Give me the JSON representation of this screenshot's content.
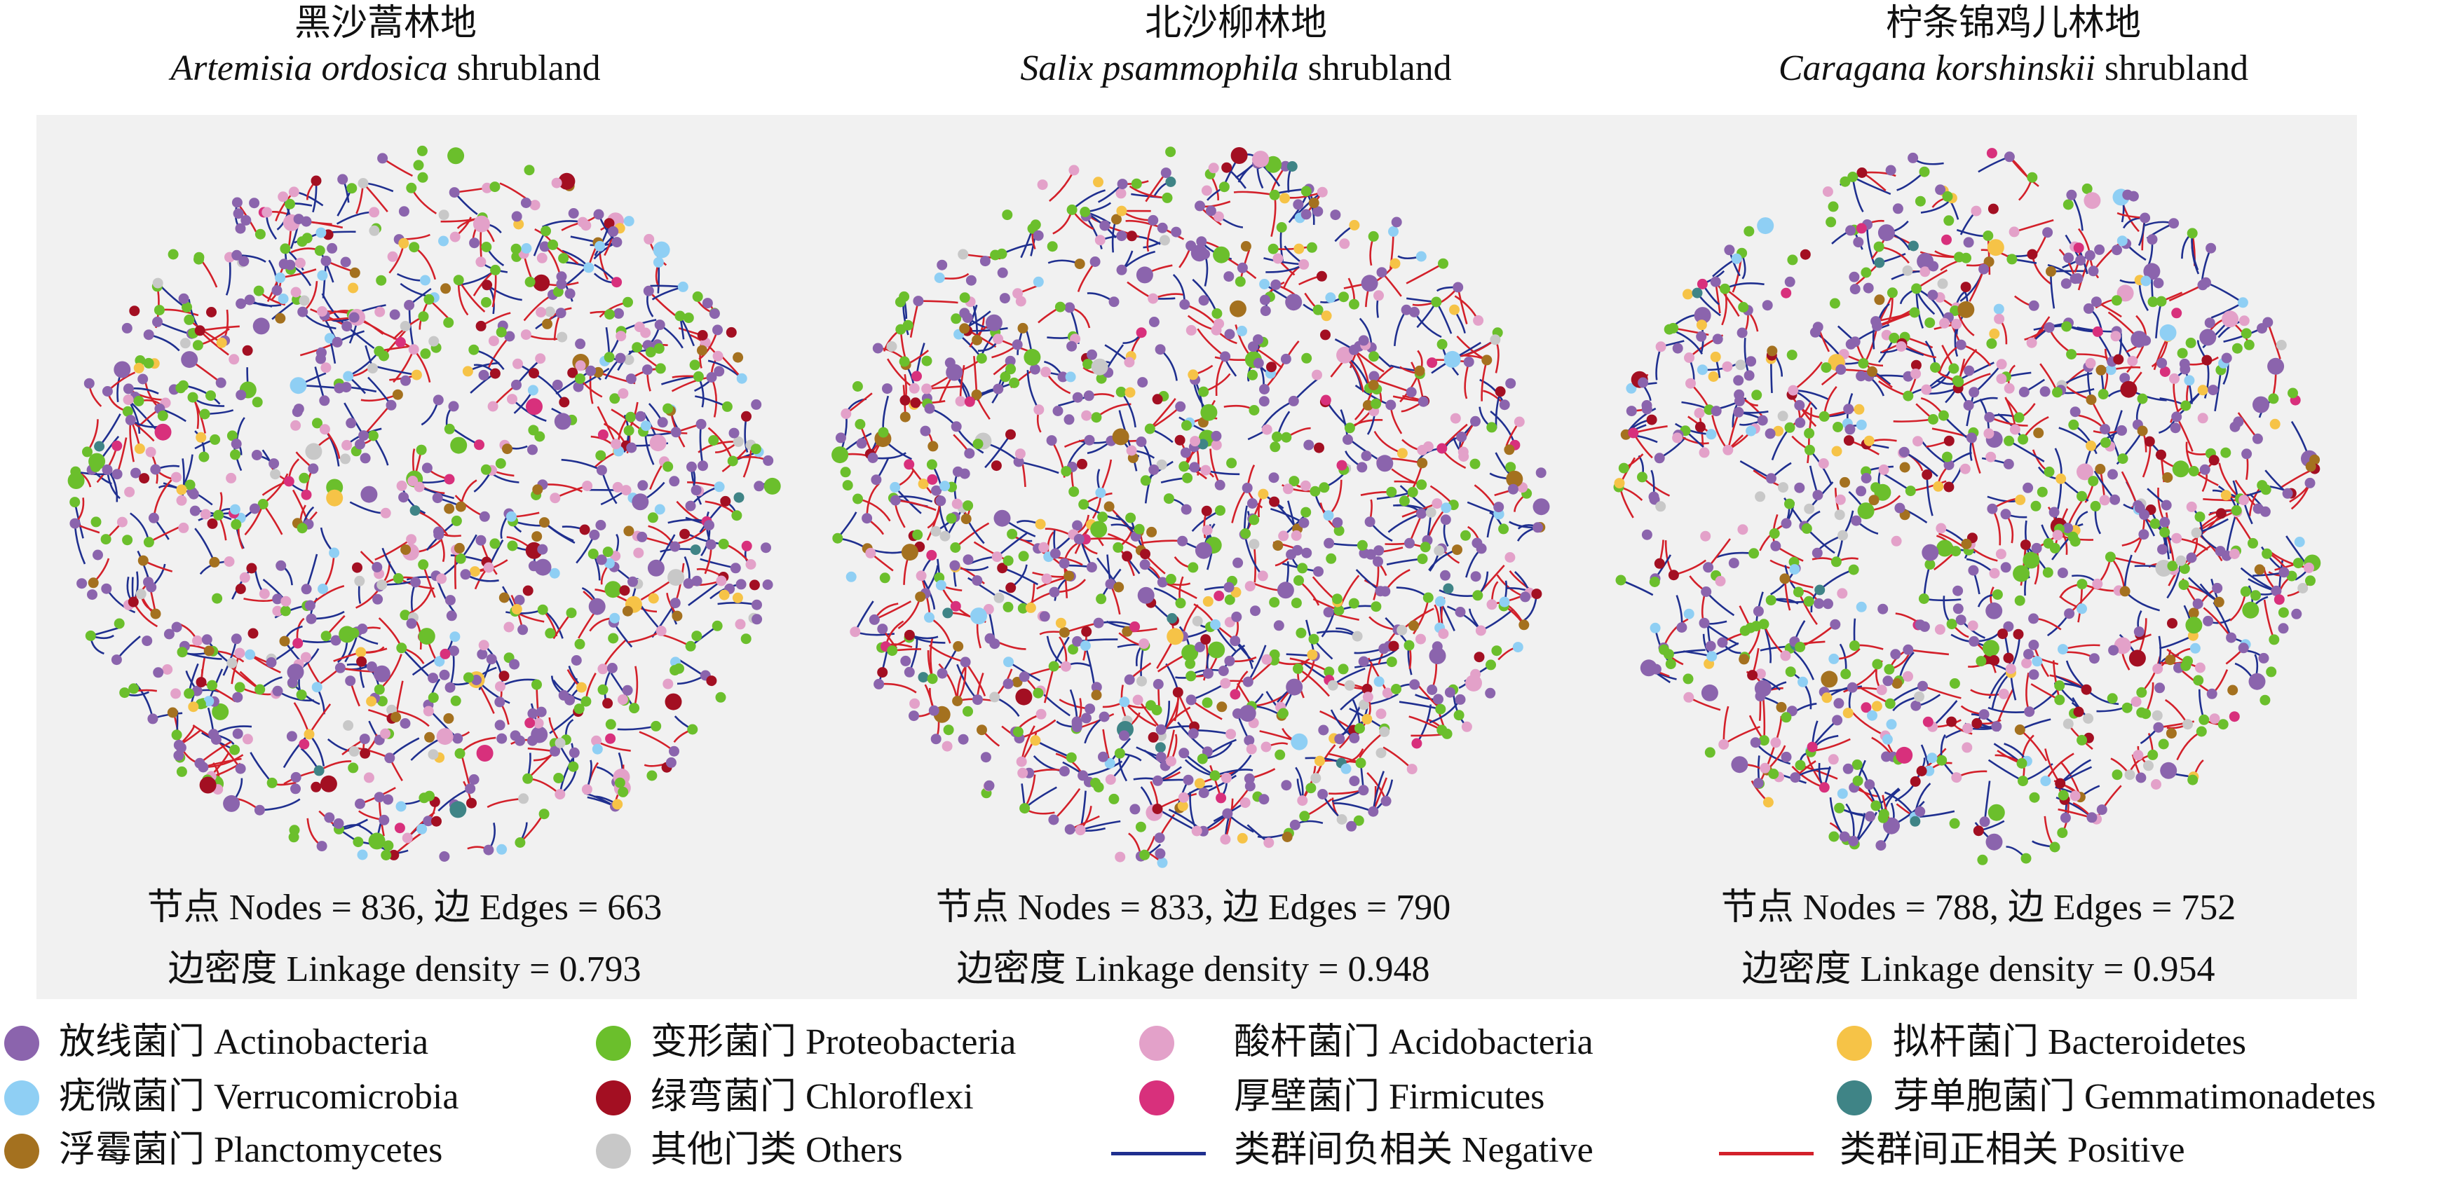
{
  "panels": [
    {
      "title_cn": "黑沙蒿林地",
      "species": "Artemisia ordosica",
      "suffix": "shrubland",
      "stats_line1": "节点 Nodes = 836, 边 Edges = 663",
      "stats_line2": "边密度 Linkage density = 0.793",
      "nodes": 836,
      "edges": 663,
      "linkage_density": 0.793
    },
    {
      "title_cn": "北沙柳林地",
      "species": "Salix psammophila",
      "suffix": "shrubland",
      "stats_line1": "节点 Nodes = 833, 边 Edges = 790",
      "stats_line2": "边密度 Linkage density = 0.948",
      "nodes": 833,
      "edges": 790,
      "linkage_density": 0.948
    },
    {
      "title_cn": "柠条锦鸡儿林地",
      "species": "Caragana korshinskii",
      "suffix": "shrubland",
      "stats_line1": "节点 Nodes = 788, 边 Edges = 752",
      "stats_line2": "边密度 Linkage density = 0.954",
      "nodes": 788,
      "edges": 752,
      "linkage_density": 0.954
    }
  ],
  "legend": [
    {
      "label": "放线菌门 Actinobacteria",
      "color": "#8b64ad"
    },
    {
      "label": "疣微菌门 Verrucomicrobia",
      "color": "#8fcff4"
    },
    {
      "label": "浮霉菌门 Planctomycetes",
      "color": "#a4711f"
    },
    {
      "label": "变形菌门 Proteobacteria",
      "color": "#6bbf2c"
    },
    {
      "label": "绿弯菌门 Chloroflexi",
      "color": "#a30f22"
    },
    {
      "label": "其他门类 Others",
      "color": "#c8c8c8"
    },
    {
      "label": "酸杆菌门 Acidobacteria",
      "color": "#e3a1c9"
    },
    {
      "label": "厚壁菌门 Firmicutes",
      "color": "#d8307c"
    },
    {
      "label": "拟杆菌门 Bacteroidetes",
      "color": "#f6c347"
    },
    {
      "label": "芽单胞菌门 Gemmatimonadetes",
      "color": "#3f8486"
    }
  ],
  "edge_legend": [
    {
      "label": "类群间负相关 Negative",
      "color": "#1f2f8f"
    },
    {
      "label": "类群间正相关 Positive",
      "color": "#d3202a"
    }
  ]
}
